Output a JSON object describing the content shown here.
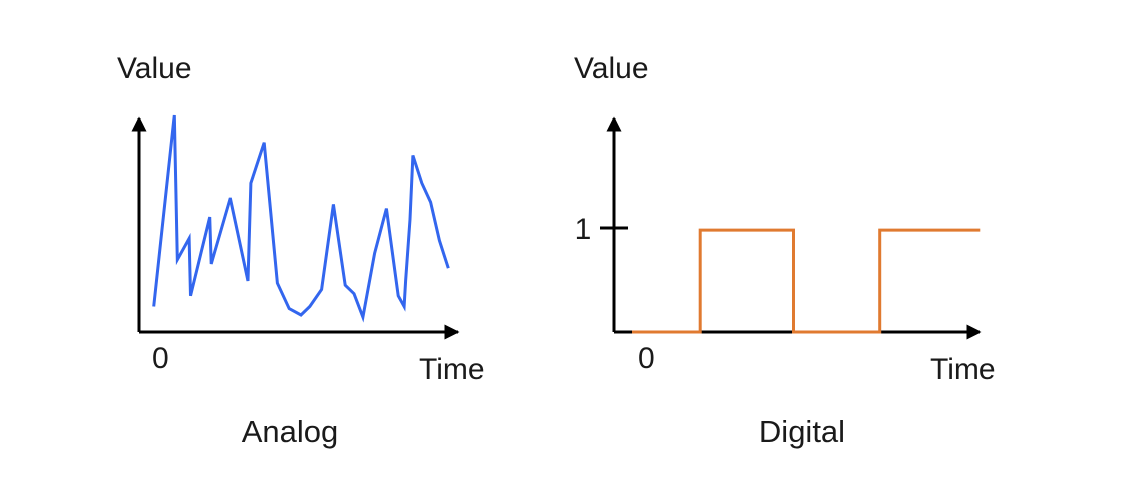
{
  "chart_data": [
    {
      "type": "line",
      "title": "Analog",
      "xlabel": "Time",
      "ylabel": "Value",
      "origin_label": "0",
      "color": "#3366ee",
      "x": [
        0.5,
        1.2,
        1.3,
        1.7,
        1.75,
        2.4,
        2.45,
        3.1,
        3.7,
        3.8,
        4.25,
        4.7,
        5.1,
        5.5,
        5.8,
        6.2,
        6.6,
        7.0,
        7.3,
        7.6,
        8.0,
        8.4,
        8.8,
        9.0,
        9.05,
        9.2,
        9.3,
        9.6,
        9.9,
        10.2,
        10.5
      ],
      "y": [
        1.2,
        10.2,
        3.4,
        4.4,
        1.7,
        5.4,
        3.2,
        6.3,
        2.4,
        7.0,
        8.9,
        2.3,
        1.1,
        0.8,
        1.2,
        2.0,
        6.0,
        2.2,
        1.8,
        0.7,
        3.7,
        5.8,
        1.7,
        1.2,
        2.4,
        5.3,
        8.3,
        7.0,
        6.1,
        4.3,
        3.0
      ],
      "xlim": [
        0,
        11
      ],
      "ylim": [
        0,
        11
      ]
    },
    {
      "type": "line",
      "title": "Digital",
      "xlabel": "Time",
      "ylabel": "Value",
      "origin_label": "0",
      "yticks": [
        {
          "value": 1,
          "label": "1"
        }
      ],
      "color": "#e07a30",
      "x": [
        0.5,
        2.4,
        2.4,
        5.0,
        5.0,
        7.4,
        7.4,
        10.2
      ],
      "y": [
        0,
        0,
        0.98,
        0.98,
        0,
        0,
        0.98,
        0.98
      ],
      "xlim": [
        0,
        11
      ],
      "ylim": [
        0,
        2
      ]
    }
  ]
}
